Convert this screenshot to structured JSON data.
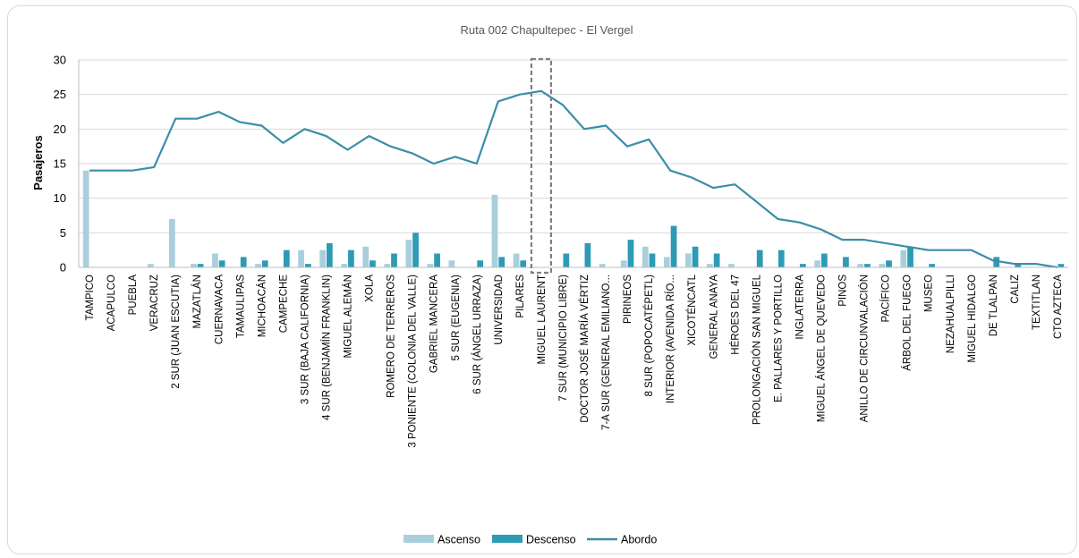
{
  "chart_data": {
    "type": "bar",
    "title": "Ruta 002 Chapultepec - El Vergel",
    "xlabel": "",
    "ylabel": "Pasajeros",
    "ylim": [
      0,
      30
    ],
    "yticks": [
      0,
      5,
      10,
      15,
      20,
      25,
      30
    ],
    "grid": true,
    "legend_position": "bottom",
    "highlighted_category": "MIGUEL LAURENT",
    "categories": [
      "TAMPICO",
      "ACAPULCO",
      "PUEBLA",
      "VERACRUZ",
      "2 SUR (JUAN ESCUTIA)",
      "MAZATLÁN",
      "CUERNAVACA",
      "TAMAULIPAS",
      "MICHOACÁN",
      "CAMPECHE",
      "3 SUR (BAJA CALIFORNIA)",
      "4 SUR (BENJAMÍN FRANKLIN)",
      "MIGUEL ALEMÁN",
      "XOLA",
      "ROMERO DE TERREROS",
      "3 PONIENTE (COLONIA DEL VALLE)",
      "GABRIEL MANCERA",
      "5 SUR (EUGENIA)",
      "6 SUR (ÁNGEL URRAZA)",
      "UNIVERSIDAD",
      "PILARES",
      "MIGUEL LAURENT",
      "7 SUR (MUNICIPIO LIBRE)",
      "DOCTOR JOSÉ MARÍA VÉRTIZ",
      "7-A SUR (GENERAL EMILIANO...",
      "PIRINEOS",
      "8 SUR (POPOCATÉPETL)",
      "INTERIOR (AVENIDA RÍO...",
      "XICOTÉNCATL",
      "GENERAL ANAYA",
      "HÉROES DEL 47",
      "PROLONGACIÓN SAN MIGUEL",
      "E. PALLARES Y PORTILLO",
      "INGLATERRA",
      "MIGUEL ÁNGEL DE QUEVEDO",
      "PINOS",
      "ANILLO DE CIRCUNVALACIÓN",
      "PACÍFICO",
      "ÁRBOL DEL FUEGO",
      "MUSEO",
      "NEZAHUALPILLI",
      "MIGUEL HIDALGO",
      "DE TLALPAN",
      "CALIZ",
      "TEXTITLAN",
      "CTO AZTECA"
    ],
    "series": [
      {
        "name": "Ascenso",
        "type": "bar",
        "color": "#a9cfdc",
        "values": [
          14,
          0,
          0,
          0.5,
          7,
          0.5,
          2,
          0,
          0.5,
          0,
          2.5,
          2.5,
          0.5,
          3,
          0.5,
          4,
          0.5,
          1,
          0,
          10.5,
          2,
          0,
          0,
          0,
          0.5,
          1,
          3,
          1.5,
          2,
          0.5,
          0.5,
          0,
          0,
          0,
          1,
          0,
          0.5,
          0.5,
          2.5,
          0,
          0,
          0,
          0,
          0,
          0,
          0
        ]
      },
      {
        "name": "Descenso",
        "type": "bar",
        "color": "#2e9bb5",
        "values": [
          0,
          0,
          0,
          0,
          0,
          0.5,
          1,
          1.5,
          1,
          2.5,
          0.5,
          3.5,
          2.5,
          1,
          2,
          5,
          2,
          0,
          1,
          1.5,
          1,
          0,
          2,
          3.5,
          0,
          4,
          2,
          6,
          3,
          2,
          0,
          2.5,
          2.5,
          0.5,
          2,
          1.5,
          0.5,
          1,
          3,
          0.5,
          0,
          0,
          1.5,
          0.5,
          0,
          0.5
        ]
      },
      {
        "name": "Abordo",
        "type": "line",
        "color": "#3a8ea8",
        "values": [
          14,
          14,
          14,
          14.5,
          21.5,
          21.5,
          22.5,
          21,
          20.5,
          18,
          20,
          19,
          17,
          19,
          17.5,
          16.5,
          15,
          16,
          15,
          24,
          25,
          25.5,
          23.5,
          20,
          20.5,
          17.5,
          18.5,
          14,
          13,
          11.5,
          12,
          9.5,
          7,
          6.5,
          5.5,
          4,
          4,
          3.5,
          3,
          2.5,
          2.5,
          2.5,
          1,
          0.5,
          0.5,
          0
        ]
      }
    ]
  }
}
